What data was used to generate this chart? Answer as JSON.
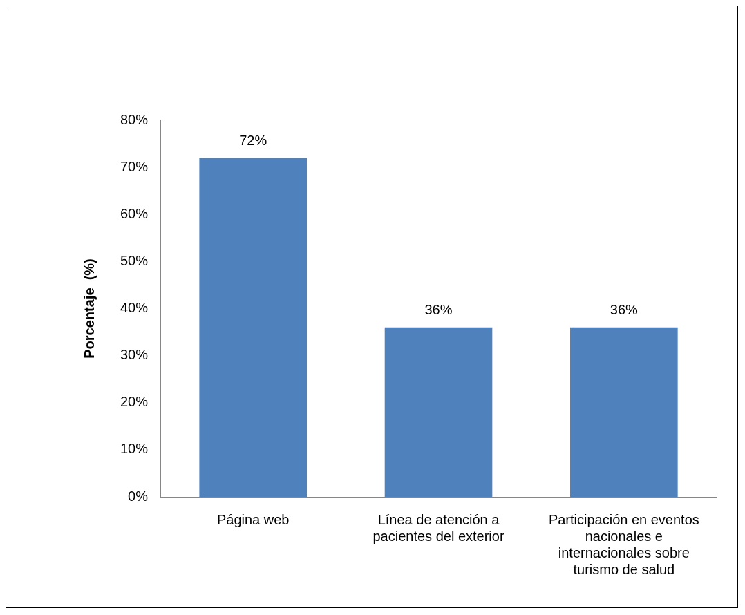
{
  "chart_data": {
    "type": "bar",
    "ylabel": "Porcentaje  (%)",
    "categories": [
      "Página web",
      "Línea de atención a pacientes del exterior",
      "Participación en eventos nacionales e internacionales sobre turismo de salud"
    ],
    "values": [
      72,
      36,
      36
    ],
    "color": "#4f81bd",
    "value_labels": [
      "72%",
      "36%",
      "36%"
    ],
    "ylim": [
      0,
      80
    ],
    "yticks": [
      {
        "value": 0,
        "label": "0%"
      },
      {
        "value": 10,
        "label": "10%"
      },
      {
        "value": 20,
        "label": "20%"
      },
      {
        "value": 30,
        "label": "30%"
      },
      {
        "value": 40,
        "label": "40%"
      },
      {
        "value": 50,
        "label": "50%"
      },
      {
        "value": 60,
        "label": "60%"
      },
      {
        "value": 70,
        "label": "70%"
      },
      {
        "value": 80,
        "label": "80%"
      }
    ],
    "grid": false,
    "legend": false
  }
}
